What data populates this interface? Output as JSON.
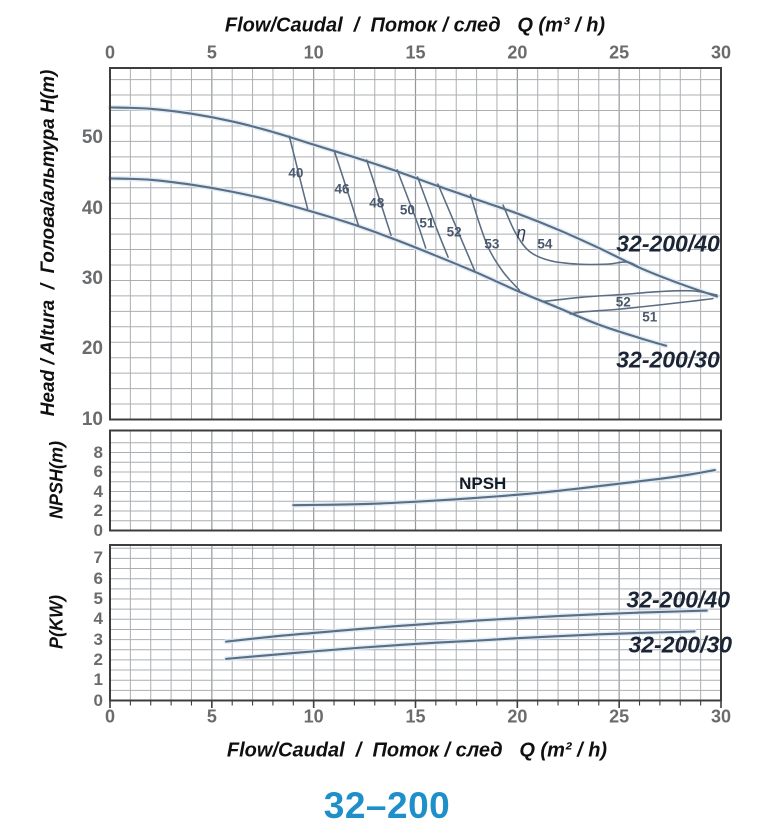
{
  "page_title": "32–200",
  "colors": {
    "curve": "#5a6d83",
    "halo": "#d9e8f5",
    "grid_minor": "#abafb2",
    "grid_major": "#94989b",
    "border": "#3e3e3e",
    "tick_text": "#696b6d",
    "title": "#1f8fca"
  },
  "axes": {
    "flow_top": {
      "label": "Flow/Caudal  /  Поток / след   Q (m³ / h)",
      "ticks": [
        0,
        5,
        10,
        15,
        20,
        25,
        30
      ],
      "range": [
        0,
        30
      ]
    },
    "flow_bottom": {
      "label": "Flow/Caudal  /  Поток / след   Q (m² / h)",
      "ticks": [
        0,
        5,
        10,
        15,
        20,
        25,
        30
      ],
      "range": [
        0,
        30
      ]
    },
    "head": {
      "label": "Head / Altura  /  Голова/альтура H(m)",
      "ticks": [
        10,
        20,
        30,
        40,
        50
      ],
      "range": [
        10,
        60
      ]
    },
    "npsh": {
      "label": "NPSH(m)",
      "ticks": [
        0,
        2,
        4,
        6,
        8
      ],
      "range": [
        0,
        10.3
      ]
    },
    "power": {
      "label": "P(KW)",
      "ticks": [
        0,
        1,
        2,
        3,
        4,
        5,
        6,
        7
      ],
      "range": [
        0,
        7.66
      ]
    }
  },
  "chart_data": [
    {
      "type": "line",
      "panel": "head",
      "title": "Head vs Flow",
      "xlabel": "Q (m³/h)",
      "ylabel": "H(m)",
      "xlim": [
        0,
        30
      ],
      "ylim": [
        10,
        60
      ],
      "series": [
        {
          "name": "32-200/40",
          "points": [
            [
              0,
              54.4
            ],
            [
              2,
              54.2
            ],
            [
              4,
              53.5
            ],
            [
              6,
              52.4
            ],
            [
              8,
              50.9
            ],
            [
              10,
              49.1
            ],
            [
              12,
              47.3
            ],
            [
              14,
              45.4
            ],
            [
              16,
              43.3
            ],
            [
              18,
              41.3
            ],
            [
              20,
              39.3
            ],
            [
              22,
              37.0
            ],
            [
              24,
              34.4
            ],
            [
              26,
              31.6
            ],
            [
              28,
              29.3
            ],
            [
              29.8,
              27.5
            ]
          ],
          "label": {
            "text": "32-200/40",
            "q": 27.4,
            "v": 35.0,
            "cls": "curve-label"
          }
        },
        {
          "name": "32-200/30",
          "points": [
            [
              0,
              44.3
            ],
            [
              2,
              44.1
            ],
            [
              4,
              43.4
            ],
            [
              6,
              42.4
            ],
            [
              8,
              41.1
            ],
            [
              10,
              39.5
            ],
            [
              12,
              37.7
            ],
            [
              14,
              35.6
            ],
            [
              16,
              33.3
            ],
            [
              18,
              30.9
            ],
            [
              20,
              28.3
            ],
            [
              22,
              25.9
            ],
            [
              24,
              23.5
            ],
            [
              26,
              21.6
            ],
            [
              27.3,
              20.5
            ]
          ],
          "label": {
            "text": "32-200/30",
            "q": 27.4,
            "v": 18.5,
            "cls": "curve-label"
          }
        }
      ],
      "efficiency_contours": [
        {
          "value": 40,
          "points": [
            [
              8.8,
              50.3
            ],
            [
              9.1,
              46.9
            ],
            [
              9.4,
              43.4
            ],
            [
              9.7,
              40.0
            ]
          ],
          "label": {
            "text": "40",
            "q": 9.13,
            "v": 45.1,
            "cls": "eff-label"
          }
        },
        {
          "value": 46,
          "points": [
            [
              11.0,
              48.3
            ],
            [
              11.4,
              44.8
            ],
            [
              11.8,
              41.2
            ],
            [
              12.2,
              37.6
            ]
          ],
          "label": {
            "text": "46",
            "q": 11.39,
            "v": 42.8,
            "cls": "eff-label"
          }
        },
        {
          "value": 48,
          "points": [
            [
              12.6,
              46.9
            ],
            [
              13.0,
              43.4
            ],
            [
              13.4,
              39.8
            ],
            [
              13.8,
              36.2
            ]
          ],
          "label": {
            "text": "48",
            "q": 13.1,
            "v": 40.8,
            "cls": "eff-label"
          }
        },
        {
          "value": 50,
          "points": [
            [
              14.1,
              45.5
            ],
            [
              14.6,
              41.7
            ],
            [
              15.1,
              37.9
            ],
            [
              15.5,
              34.4
            ]
          ],
          "label": {
            "text": "50",
            "q": 14.6,
            "v": 39.8,
            "cls": "eff-label"
          }
        },
        {
          "value": 51,
          "points": [
            [
              15.1,
              44.5
            ],
            [
              15.6,
              40.6
            ],
            [
              16.1,
              36.7
            ],
            [
              16.6,
              33.1
            ]
          ],
          "label": {
            "text": "51",
            "q": 15.56,
            "v": 38.0,
            "cls": "eff-label"
          }
        },
        {
          "value": 52,
          "points": [
            [
              16.1,
              43.5
            ],
            [
              16.7,
              39.4
            ],
            [
              17.3,
              35.3
            ],
            [
              17.9,
              31.2
            ]
          ],
          "label": {
            "text": "52",
            "q": 16.9,
            "v": 36.7,
            "cls": "eff-label"
          }
        },
        {
          "value": 53,
          "points": [
            [
              17.7,
              42.0
            ],
            [
              18.1,
              38.2
            ],
            [
              18.6,
              34.3
            ],
            [
              19.3,
              31.0
            ],
            [
              20.1,
              28.4
            ]
          ],
          "label": {
            "text": "53",
            "q": 18.75,
            "v": 34.9,
            "cls": "eff-label"
          }
        },
        {
          "value": 54,
          "points": [
            [
              19.3,
              40.5
            ],
            [
              19.9,
              36.6
            ],
            [
              20.6,
              33.9
            ],
            [
              21.6,
              32.6
            ],
            [
              23.0,
              32.1
            ],
            [
              24.4,
              32.1
            ],
            [
              25.4,
              32.4
            ],
            [
              26.0,
              31.6
            ]
          ],
          "label": {
            "text": "54",
            "q": 21.35,
            "v": 34.9,
            "cls": "eff-label"
          }
        },
        {
          "value": 52,
          "points": [
            [
              21.3,
              26.8
            ],
            [
              23.2,
              27.4
            ],
            [
              25.2,
              27.8
            ],
            [
              27.0,
              28.2
            ],
            [
              28.6,
              28.3
            ],
            [
              29.8,
              27.7
            ]
          ],
          "label": {
            "text": "52",
            "q": 25.2,
            "v": 26.7,
            "cls": "eff-label"
          }
        },
        {
          "value": 51,
          "points": [
            [
              22.6,
              25.0
            ],
            [
              23.2,
              25.3
            ],
            [
              25.0,
              25.7
            ],
            [
              27.0,
              26.3
            ],
            [
              28.5,
              26.8
            ],
            [
              29.6,
              27.2
            ]
          ],
          "label": {
            "text": "51",
            "q": 26.5,
            "v": 24.65,
            "cls": "eff-label"
          }
        }
      ],
      "eta_label": {
        "text": "η",
        "q": 20.2,
        "v": 36.5,
        "cls": "eta-label"
      }
    },
    {
      "type": "line",
      "panel": "npsh",
      "title": "NPSH vs Flow",
      "ylabel": "NPSH(m)",
      "xlim": [
        0,
        30
      ],
      "ylim": [
        0,
        10.3
      ],
      "series": [
        {
          "name": "NPSH",
          "points": [
            [
              9,
              2.6
            ],
            [
              11,
              2.65
            ],
            [
              13,
              2.75
            ],
            [
              15,
              2.95
            ],
            [
              17,
              3.2
            ],
            [
              19,
              3.5
            ],
            [
              21,
              3.85
            ],
            [
              23,
              4.3
            ],
            [
              25,
              4.8
            ],
            [
              27,
              5.3
            ],
            [
              28.5,
              5.75
            ],
            [
              29.7,
              6.2
            ]
          ],
          "label": {
            "text": "NPSH",
            "q": 18.3,
            "v": 4.77,
            "cls": "npsh-label"
          }
        }
      ]
    },
    {
      "type": "line",
      "panel": "power",
      "title": "Power vs Flow",
      "ylabel": "P(KW)",
      "xlim": [
        0,
        30
      ],
      "ylim": [
        0,
        7.66
      ],
      "series": [
        {
          "name": "32-200/40",
          "points": [
            [
              5.7,
              2.9
            ],
            [
              8,
              3.15
            ],
            [
              10,
              3.33
            ],
            [
              12,
              3.5
            ],
            [
              14,
              3.66
            ],
            [
              16,
              3.8
            ],
            [
              18,
              3.94
            ],
            [
              20,
              4.05
            ],
            [
              22,
              4.16
            ],
            [
              24,
              4.25
            ],
            [
              26,
              4.33
            ],
            [
              28,
              4.39
            ],
            [
              29.3,
              4.43
            ]
          ],
          "label": {
            "text": "32-200/40",
            "q": 27.9,
            "v": 4.95,
            "cls": "curve-label"
          }
        },
        {
          "name": "32-200/30",
          "points": [
            [
              5.7,
              2.05
            ],
            [
              8,
              2.25
            ],
            [
              10,
              2.42
            ],
            [
              12,
              2.58
            ],
            [
              14,
              2.72
            ],
            [
              16,
              2.85
            ],
            [
              18,
              2.95
            ],
            [
              20,
              3.07
            ],
            [
              22,
              3.17
            ],
            [
              24,
              3.26
            ],
            [
              26,
              3.33
            ],
            [
              28,
              3.38
            ],
            [
              28.7,
              3.4
            ]
          ],
          "label": {
            "text": "32-200/30",
            "q": 28.0,
            "v": 2.73,
            "cls": "curve-label"
          }
        }
      ]
    }
  ]
}
